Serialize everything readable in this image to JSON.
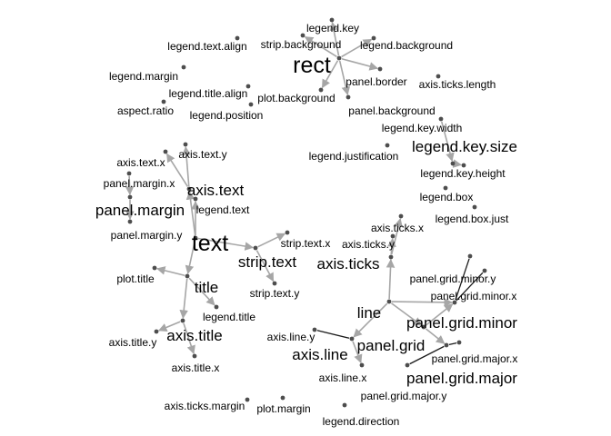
{
  "diagram": {
    "type": "network",
    "colors": {
      "edge": "#a6a6a6",
      "edge_dark": "#1a1a1a",
      "node": "#4d4d4d",
      "label": "#000000",
      "background": "#ffffff"
    },
    "nodes": [
      {
        "id": "rect",
        "label": "rect",
        "size": "large"
      },
      {
        "id": "legend_key",
        "label": "legend.key",
        "size": "small"
      },
      {
        "id": "strip_background",
        "label": "strip.background",
        "size": "small"
      },
      {
        "id": "legend_background",
        "label": "legend.background",
        "size": "small"
      },
      {
        "id": "panel_border",
        "label": "panel.border",
        "size": "small"
      },
      {
        "id": "plot_background",
        "label": "plot.background",
        "size": "small"
      },
      {
        "id": "panel_background",
        "label": "panel.background",
        "size": "small"
      },
      {
        "id": "legend_text_align",
        "label": "legend.text.align",
        "size": "small"
      },
      {
        "id": "legend_margin",
        "label": "legend.margin",
        "size": "small"
      },
      {
        "id": "legend_title_align",
        "label": "legend.title.align",
        "size": "small"
      },
      {
        "id": "aspect_ratio",
        "label": "aspect.ratio",
        "size": "small"
      },
      {
        "id": "legend_position",
        "label": "legend.position",
        "size": "small"
      },
      {
        "id": "axis_ticks_length",
        "label": "axis.ticks.length",
        "size": "small"
      },
      {
        "id": "legend_key_width",
        "label": "legend.key.width",
        "size": "small"
      },
      {
        "id": "legend_key_size",
        "label": "legend.key.size",
        "size": "medium"
      },
      {
        "id": "legend_key_height",
        "label": "legend.key.height",
        "size": "small"
      },
      {
        "id": "legend_justification",
        "label": "legend.justification",
        "size": "small"
      },
      {
        "id": "legend_box",
        "label": "legend.box",
        "size": "small"
      },
      {
        "id": "legend_box_just",
        "label": "legend.box.just",
        "size": "small"
      },
      {
        "id": "text",
        "label": "text",
        "size": "large"
      },
      {
        "id": "axis_text_x",
        "label": "axis.text.x",
        "size": "small"
      },
      {
        "id": "axis_text_y",
        "label": "axis.text.y",
        "size": "small"
      },
      {
        "id": "panel_margin_x",
        "label": "panel.margin.x",
        "size": "small"
      },
      {
        "id": "axis_text",
        "label": "axis.text",
        "size": "medium"
      },
      {
        "id": "panel_margin",
        "label": "panel.margin",
        "size": "medium"
      },
      {
        "id": "legend_text",
        "label": "legend.text",
        "size": "small"
      },
      {
        "id": "panel_margin_y",
        "label": "panel.margin.y",
        "size": "small"
      },
      {
        "id": "strip_text_x",
        "label": "strip.text.x",
        "size": "small"
      },
      {
        "id": "strip_text",
        "label": "strip.text",
        "size": "medium"
      },
      {
        "id": "strip_text_y",
        "label": "strip.text.y",
        "size": "small"
      },
      {
        "id": "plot_title",
        "label": "plot.title",
        "size": "small"
      },
      {
        "id": "title",
        "label": "title",
        "size": "medium"
      },
      {
        "id": "legend_title",
        "label": "legend.title",
        "size": "small"
      },
      {
        "id": "axis_title",
        "label": "axis.title",
        "size": "medium"
      },
      {
        "id": "axis_title_y",
        "label": "axis.title.y",
        "size": "small"
      },
      {
        "id": "axis_title_x",
        "label": "axis.title.x",
        "size": "small"
      },
      {
        "id": "axis_ticks_margin",
        "label": "axis.ticks.margin",
        "size": "small"
      },
      {
        "id": "plot_margin",
        "label": "plot.margin",
        "size": "small"
      },
      {
        "id": "legend_direction",
        "label": "legend.direction",
        "size": "small"
      },
      {
        "id": "line",
        "label": "line",
        "size": "medium"
      },
      {
        "id": "axis_ticks_x",
        "label": "axis.ticks.x",
        "size": "small"
      },
      {
        "id": "axis_ticks_y",
        "label": "axis.ticks.y",
        "size": "small"
      },
      {
        "id": "axis_ticks",
        "label": "axis.ticks",
        "size": "medium"
      },
      {
        "id": "axis_line_y",
        "label": "axis.line.y",
        "size": "small"
      },
      {
        "id": "axis_line",
        "label": "axis.line",
        "size": "medium"
      },
      {
        "id": "axis_line_x",
        "label": "axis.line.x",
        "size": "small"
      },
      {
        "id": "panel_grid",
        "label": "panel.grid",
        "size": "medium"
      },
      {
        "id": "panel_grid_minor_y",
        "label": "panel.grid.minor.y",
        "size": "small"
      },
      {
        "id": "panel_grid_minor_x",
        "label": "panel.grid.minor.x",
        "size": "small"
      },
      {
        "id": "panel_grid_minor",
        "label": "panel.grid.minor",
        "size": "medium"
      },
      {
        "id": "panel_grid_major_x",
        "label": "panel.grid.major.x",
        "size": "small"
      },
      {
        "id": "panel_grid_major",
        "label": "panel.grid.major",
        "size": "medium"
      },
      {
        "id": "panel_grid_major_y",
        "label": "panel.grid.major.y",
        "size": "small"
      }
    ],
    "edges": [
      {
        "from": "rect",
        "to": "legend_key"
      },
      {
        "from": "rect",
        "to": "strip_background"
      },
      {
        "from": "rect",
        "to": "legend_background"
      },
      {
        "from": "rect",
        "to": "panel_border"
      },
      {
        "from": "rect",
        "to": "plot_background"
      },
      {
        "from": "rect",
        "to": "panel_background"
      },
      {
        "from": "legend_key_width",
        "to": "legend_key_size"
      },
      {
        "from": "legend_key_size",
        "to": "legend_key_height"
      },
      {
        "from": "axis_text",
        "to": "axis_text_x"
      },
      {
        "from": "axis_text",
        "to": "axis_text_y"
      },
      {
        "from": "text",
        "to": "axis_text"
      },
      {
        "from": "panel_margin_x",
        "to": "panel_margin"
      },
      {
        "from": "panel_margin",
        "to": "panel_margin_y"
      },
      {
        "from": "text",
        "to": "legend_text"
      },
      {
        "from": "text",
        "to": "strip_text"
      },
      {
        "from": "strip_text",
        "to": "strip_text_x"
      },
      {
        "from": "strip_text",
        "to": "strip_text_y"
      },
      {
        "from": "text",
        "to": "title"
      },
      {
        "from": "title",
        "to": "plot_title"
      },
      {
        "from": "title",
        "to": "legend_title"
      },
      {
        "from": "title",
        "to": "axis_title"
      },
      {
        "from": "axis_title",
        "to": "axis_title_y"
      },
      {
        "from": "axis_title",
        "to": "axis_title_x"
      },
      {
        "from": "line",
        "to": "axis_ticks"
      },
      {
        "from": "axis_ticks",
        "to": "axis_ticks_x"
      },
      {
        "from": "axis_ticks",
        "to": "axis_ticks_y"
      },
      {
        "from": "line",
        "to": "axis_line"
      },
      {
        "from": "axis_line",
        "to": "axis_line_y"
      },
      {
        "from": "axis_line",
        "to": "axis_line_x"
      },
      {
        "from": "line",
        "to": "panel_grid"
      },
      {
        "from": "line",
        "to": "panel_grid_minor"
      },
      {
        "from": "panel_grid",
        "to": "panel_grid_minor"
      },
      {
        "from": "panel_grid",
        "to": "panel_grid_major"
      },
      {
        "from": "panel_grid_minor",
        "to": "panel_grid_minor_y"
      },
      {
        "from": "panel_grid_minor",
        "to": "panel_grid_minor_x"
      },
      {
        "from": "panel_grid_major",
        "to": "panel_grid_major_x"
      },
      {
        "from": "panel_grid_major",
        "to": "panel_grid_major_y"
      }
    ]
  }
}
